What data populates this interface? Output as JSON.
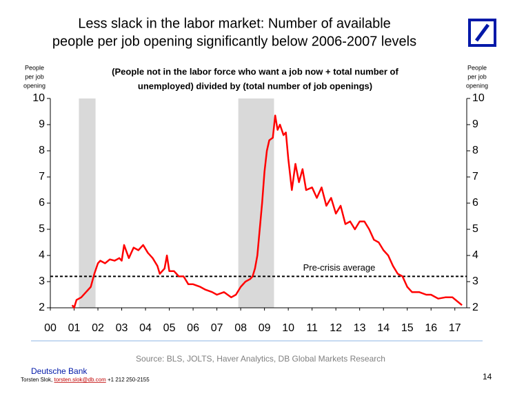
{
  "chart_data": {
    "type": "line",
    "title": [
      "Less slack in the labor market: Number of available",
      "people per job opening significantly below 2006-2007 levels"
    ],
    "subtitle": [
      "(People not in the labor force who want a job now + total number of",
      "unemployed) divided by (total number of job openings)"
    ],
    "y_label": [
      "People",
      "per job",
      "opening"
    ],
    "y2_label": [
      "People",
      "per job",
      "opening"
    ],
    "xlim": [
      2000,
      2017.5
    ],
    "xticks": [
      {
        "value": 2000,
        "label": "00"
      },
      {
        "value": 2001,
        "label": "01"
      },
      {
        "value": 2002,
        "label": "02"
      },
      {
        "value": 2003,
        "label": "03"
      },
      {
        "value": 2004,
        "label": "04"
      },
      {
        "value": 2005,
        "label": "05"
      },
      {
        "value": 2006,
        "label": "06"
      },
      {
        "value": 2007,
        "label": "07"
      },
      {
        "value": 2008,
        "label": "08"
      },
      {
        "value": 2009,
        "label": "09"
      },
      {
        "value": 2010,
        "label": "10"
      },
      {
        "value": 2011,
        "label": "11"
      },
      {
        "value": 2012,
        "label": "12"
      },
      {
        "value": 2013,
        "label": "13"
      },
      {
        "value": 2014,
        "label": "14"
      },
      {
        "value": 2015,
        "label": "15"
      },
      {
        "value": 2016,
        "label": "16"
      },
      {
        "value": 2017,
        "label": "17"
      }
    ],
    "ylim": [
      2,
      10
    ],
    "yticks": [
      2,
      3,
      4,
      5,
      6,
      7,
      8,
      9,
      10
    ],
    "y2lim": [
      2,
      10
    ],
    "y2ticks": [
      2,
      3,
      4,
      5,
      6,
      7,
      8,
      9,
      10
    ],
    "shaded_regions": [
      [
        2001.2,
        2001.9
      ],
      [
        2007.9,
        2009.4
      ]
    ],
    "shade_color": "#d9d9d9",
    "reference_line": {
      "value": 3.2,
      "label": "Pre-crisis average",
      "color": "#000000"
    },
    "x": [
      2000.92,
      2001.0,
      2001.1,
      2001.3,
      2001.5,
      2001.7,
      2001.85,
      2002.0,
      2002.1,
      2002.3,
      2002.5,
      2002.7,
      2002.9,
      2003.0,
      2003.1,
      2003.3,
      2003.5,
      2003.7,
      2003.9,
      2004.1,
      2004.3,
      2004.5,
      2004.6,
      2004.8,
      2004.9,
      2005.0,
      2005.2,
      2005.4,
      2005.6,
      2005.8,
      2006.0,
      2006.3,
      2006.5,
      2006.8,
      2007.0,
      2007.3,
      2007.6,
      2007.8,
      2008.0,
      2008.2,
      2008.4,
      2008.5,
      2008.6,
      2008.7,
      2008.8,
      2008.9,
      2009.0,
      2009.1,
      2009.2,
      2009.35,
      2009.45,
      2009.55,
      2009.65,
      2009.8,
      2009.9,
      2010.0,
      2010.15,
      2010.3,
      2010.45,
      2010.6,
      2010.75,
      2011.0,
      2011.2,
      2011.4,
      2011.6,
      2011.8,
      2012.0,
      2012.2,
      2012.4,
      2012.6,
      2012.8,
      2013.0,
      2013.2,
      2013.4,
      2013.6,
      2013.8,
      2014.0,
      2014.2,
      2014.4,
      2014.6,
      2014.8,
      2015.0,
      2015.2,
      2015.5,
      2015.8,
      2016.0,
      2016.3,
      2016.6,
      2016.9,
      2017.1,
      2017.3
    ],
    "series": [
      {
        "name": "People per job opening",
        "color": "#ff0000",
        "values": [
          2.1,
          2.0,
          2.3,
          2.4,
          2.6,
          2.8,
          3.3,
          3.7,
          3.8,
          3.7,
          3.85,
          3.8,
          3.9,
          3.8,
          4.4,
          3.9,
          4.3,
          4.2,
          4.4,
          4.1,
          3.9,
          3.6,
          3.3,
          3.5,
          4.0,
          3.4,
          3.4,
          3.2,
          3.2,
          2.9,
          2.9,
          2.8,
          2.7,
          2.6,
          2.5,
          2.6,
          2.4,
          2.5,
          2.8,
          3.0,
          3.1,
          3.2,
          3.5,
          4.0,
          5.0,
          6.0,
          7.2,
          8.0,
          8.4,
          8.5,
          9.35,
          8.8,
          9.0,
          8.6,
          8.7,
          7.7,
          6.5,
          7.5,
          6.8,
          7.3,
          6.5,
          6.6,
          6.2,
          6.6,
          5.9,
          6.2,
          5.6,
          5.9,
          5.2,
          5.3,
          5.0,
          5.3,
          5.3,
          5.0,
          4.6,
          4.5,
          4.2,
          4.0,
          3.6,
          3.3,
          3.2,
          2.8,
          2.6,
          2.6,
          2.5,
          2.5,
          2.35,
          2.4,
          2.4,
          2.25,
          2.1
        ]
      }
    ]
  },
  "footer": {
    "source": "Source: BLS, JOLTS, Haver Analytics, DB Global Markets Research",
    "company": "Deutsche Bank",
    "contact_name": "Torsten Slok,",
    "contact_email": "torsten.slok@db.com",
    "contact_phone": "+1 212 250-2155",
    "page_number": "14"
  }
}
